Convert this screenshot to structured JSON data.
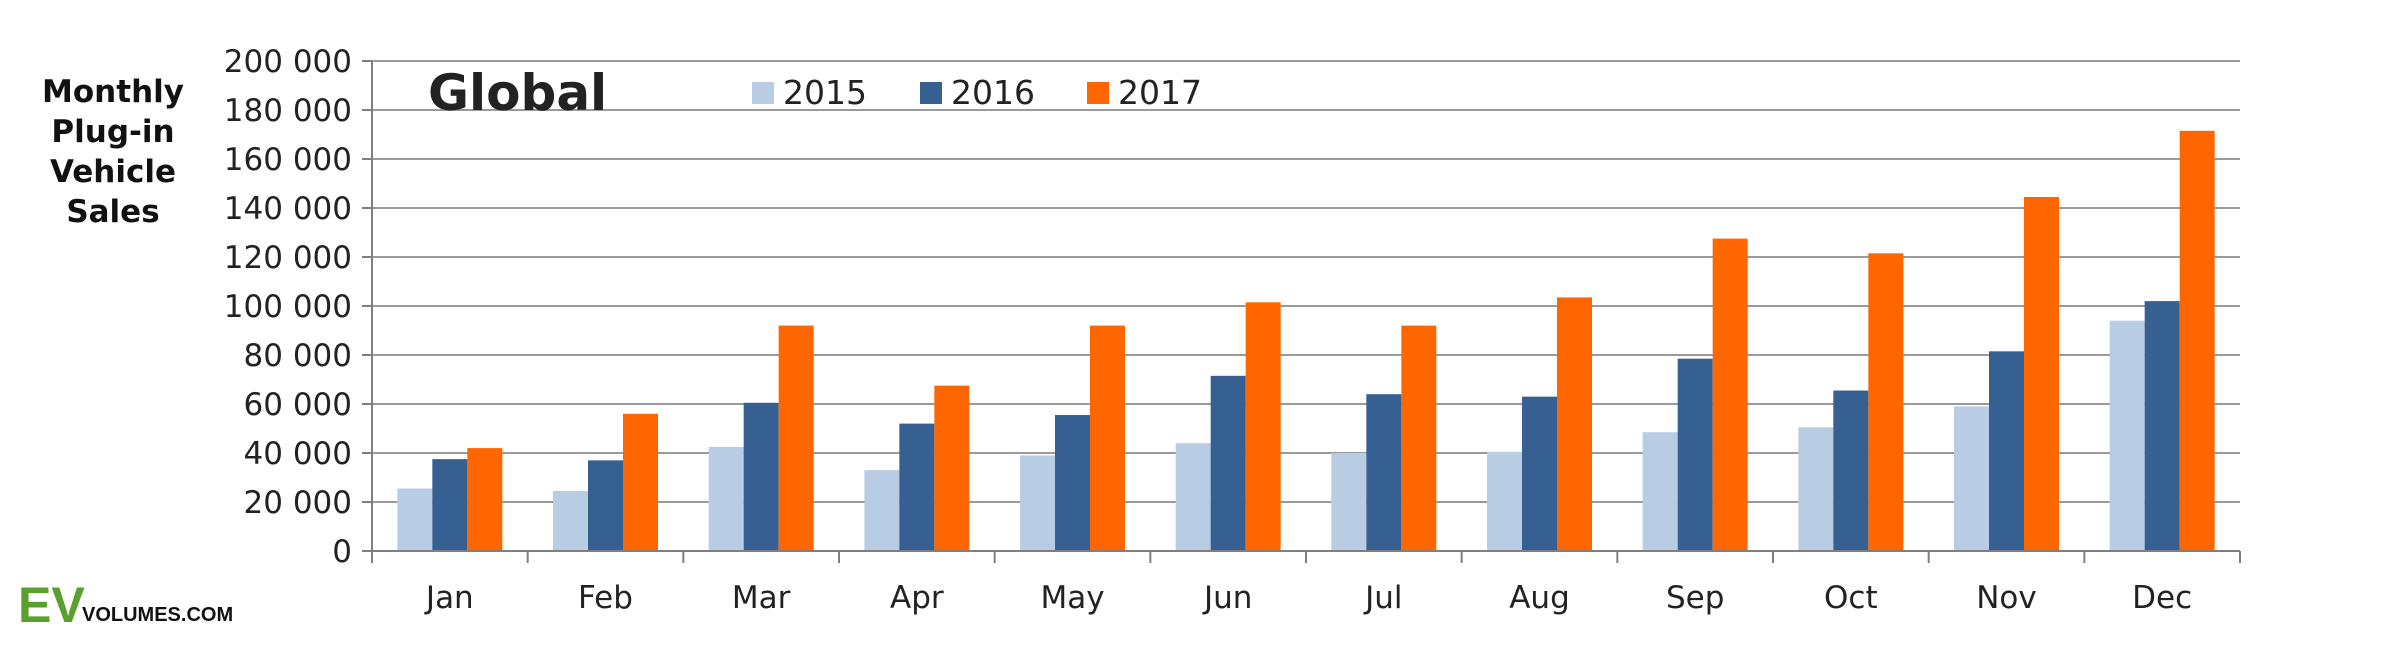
{
  "chart_data": {
    "type": "bar",
    "title": "Global",
    "ylabel": "Monthly Plug-in Vehicle Sales",
    "ylabel_lines": [
      "Monthly",
      "Plug-in",
      "Vehicle",
      "Sales"
    ],
    "xlabel": "",
    "categories": [
      "Jan",
      "Feb",
      "Mar",
      "Apr",
      "May",
      "Jun",
      "Jul",
      "Aug",
      "Sep",
      "Oct",
      "Nov",
      "Dec"
    ],
    "series": [
      {
        "name": "2015",
        "color": "#b8cce4",
        "values": [
          25500,
          24500,
          42500,
          33000,
          39000,
          44000,
          40000,
          40500,
          48500,
          50500,
          59000,
          94000
        ]
      },
      {
        "name": "2016",
        "color": "#366092",
        "values": [
          37500,
          37000,
          60500,
          52000,
          55500,
          71500,
          64000,
          63000,
          78500,
          65500,
          81500,
          102000
        ]
      },
      {
        "name": "2017",
        "color": "#ff6600",
        "values": [
          42000,
          56000,
          92000,
          67500,
          92000,
          101500,
          92000,
          103500,
          127500,
          121500,
          144500,
          171500
        ]
      }
    ],
    "ylim": [
      0,
      200000
    ],
    "ytick_step": 20000,
    "ytick_labels": [
      "0",
      "20 000",
      "40 000",
      "60 000",
      "80 000",
      "100 000",
      "120 000",
      "140 000",
      "160 000",
      "180 000",
      "200 000"
    ],
    "grid": true,
    "legend_position": "top-center"
  },
  "logo": {
    "ev": "EV",
    "rest": "VOLUMES.COM",
    "ev_color": "#5aa02c"
  },
  "colors": {
    "gridline": "#9a9a9a",
    "axis": "#7f7f7f"
  }
}
